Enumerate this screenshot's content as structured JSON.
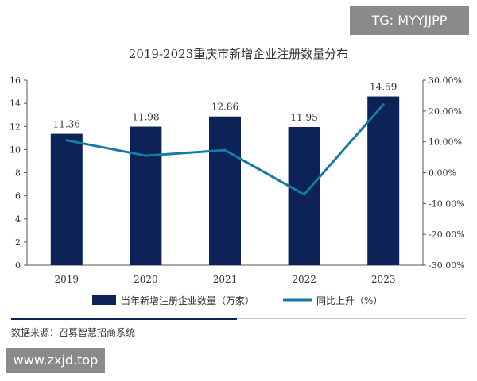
{
  "watermark_top": "TG: MYYJJPP",
  "watermark_bottom": "www.zxjd.top",
  "source_note": "数据来源：召募智慧招商系统",
  "colors": {
    "bar": "#0d2257",
    "line": "#157aa6",
    "axis": "#555555",
    "text": "#333333"
  },
  "chart_data": {
    "type": "bar",
    "title": "2019-2023重庆市新增企业注册数量分布",
    "categories": [
      "2019",
      "2020",
      "2021",
      "2022",
      "2023"
    ],
    "series": [
      {
        "name": "当年新增注册企业数量（万家）",
        "type": "bar",
        "axis": "left",
        "values": [
          11.36,
          11.98,
          12.86,
          11.95,
          14.59
        ],
        "data_labels": [
          "11.36",
          "11.98",
          "12.86",
          "11.95",
          "14.59"
        ]
      },
      {
        "name": "同比上升（%）",
        "type": "line",
        "axis": "right",
        "values": [
          10.5,
          5.5,
          7.3,
          -7.1,
          22.1
        ]
      }
    ],
    "left_axis": {
      "ylim": [
        0,
        16
      ],
      "ticks": [
        "0",
        "2",
        "4",
        "6",
        "8",
        "10",
        "12",
        "14",
        "16"
      ]
    },
    "right_axis": {
      "ylim": [
        -30,
        30
      ],
      "ticks": [
        "-30.00%",
        "-20.00%",
        "-10.00%",
        "0.00%",
        "10.00%",
        "20.00%",
        "30.00%"
      ]
    },
    "legend_position": "bottom",
    "grid": false
  }
}
